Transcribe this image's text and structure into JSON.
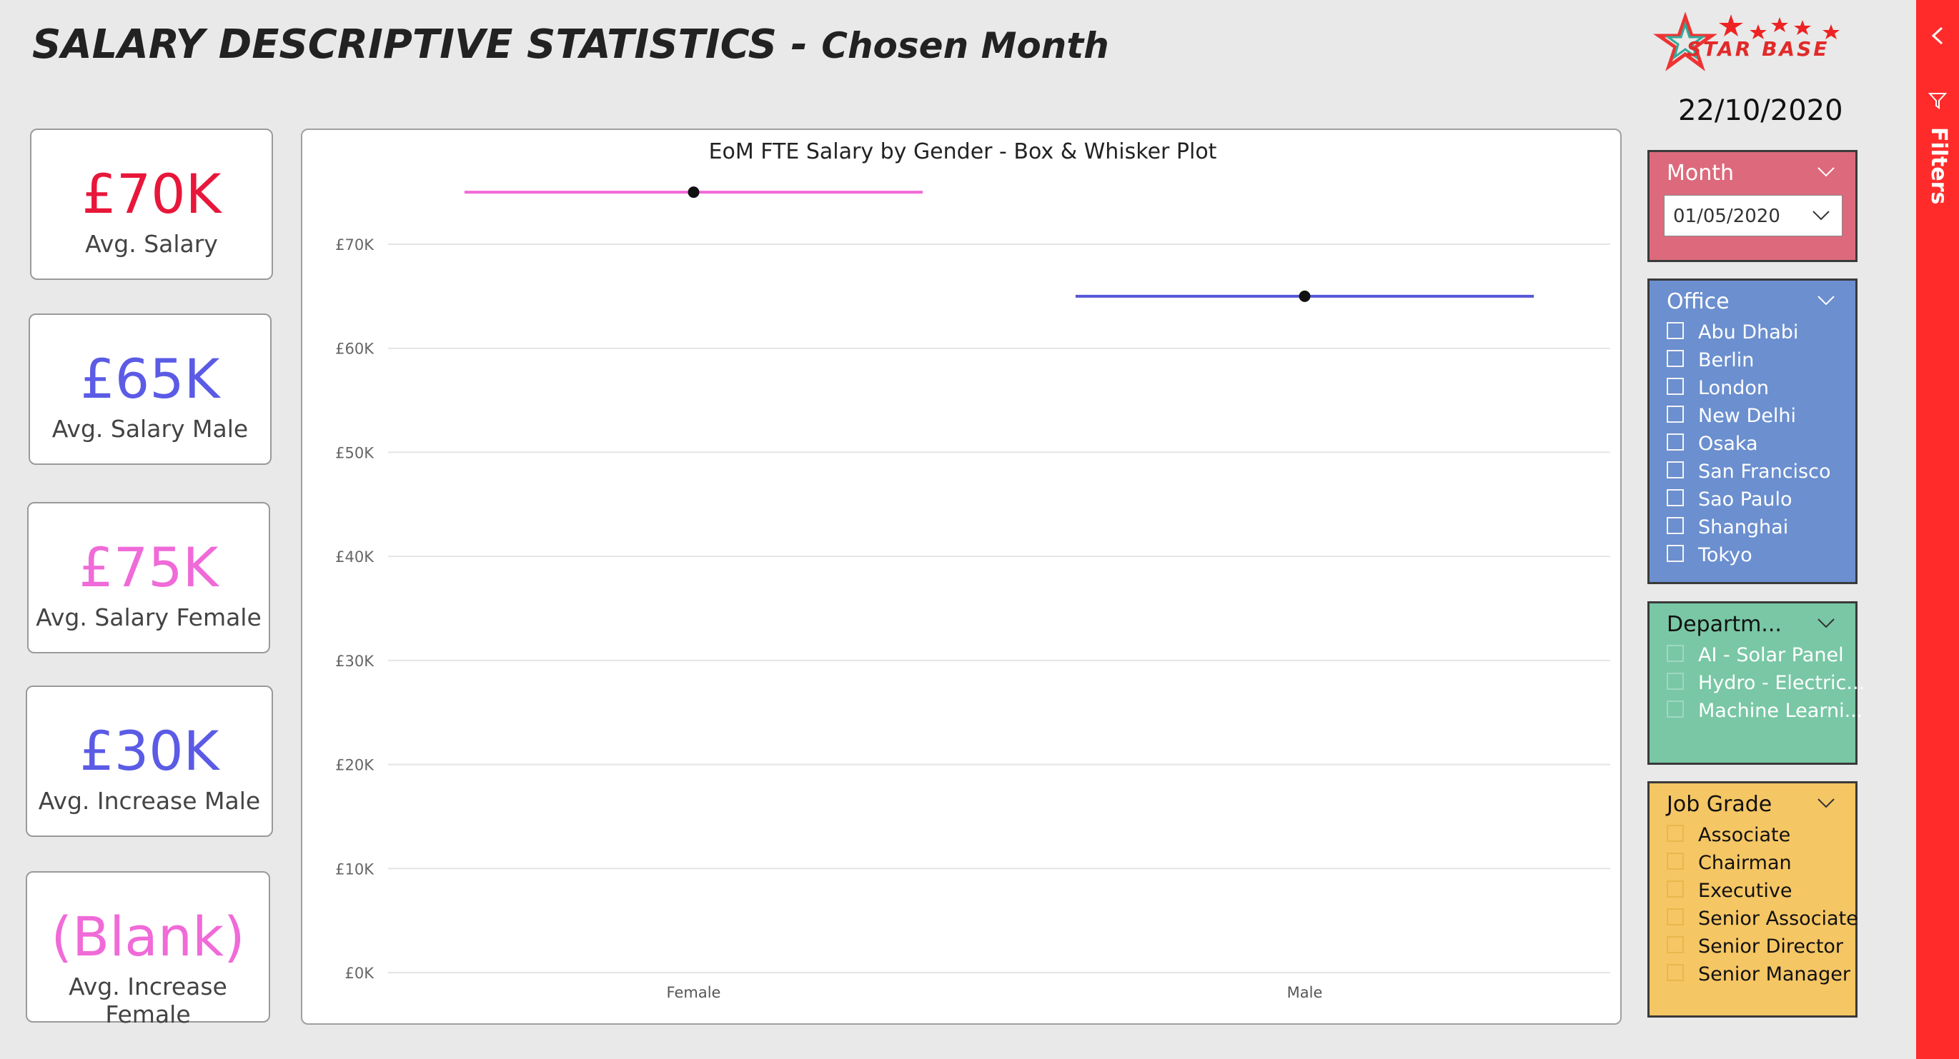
{
  "header": {
    "title_main": "SALARY DESCRIPTIVE STATISTICS - ",
    "title_sub": "Chosen Month",
    "logo_text": "STAR BASE",
    "date": "22/10/2020"
  },
  "kpis": [
    {
      "value": "£70K",
      "label": "Avg. Salary",
      "color": "#e8173a"
    },
    {
      "value": "£65K",
      "label": "Avg. Salary Male",
      "color": "#5b5be6"
    },
    {
      "value": "£75K",
      "label": "Avg. Salary Female",
      "color": "#f06ad8"
    },
    {
      "value": "£30K",
      "label": "Avg. Increase Male",
      "color": "#5b5be6"
    },
    {
      "value": "(Blank)",
      "label": "Avg. Increase Female",
      "color": "#f06ad8"
    }
  ],
  "chart_data": {
    "type": "box",
    "title": "EoM FTE Salary by Gender - Box & Whisker Plot",
    "categories": [
      "Female",
      "Male"
    ],
    "series": [
      {
        "category": "Female",
        "value": 75000,
        "color": "#f26ad8"
      },
      {
        "category": "Male",
        "value": 65000,
        "color": "#5656d8"
      }
    ],
    "ylim": [
      0,
      70000
    ],
    "yticks": [
      {
        "value": 0,
        "label": "£0K"
      },
      {
        "value": 10000,
        "label": "£10K"
      },
      {
        "value": 20000,
        "label": "£20K"
      },
      {
        "value": 30000,
        "label": "£30K"
      },
      {
        "value": 40000,
        "label": "£40K"
      },
      {
        "value": 50000,
        "label": "£50K"
      },
      {
        "value": 60000,
        "label": "£60K"
      },
      {
        "value": 70000,
        "label": "£70K"
      }
    ],
    "grid": true,
    "xlabel": "",
    "ylabel": ""
  },
  "slicers": {
    "month": {
      "header": "Month",
      "selected": "01/05/2020",
      "color": "#dc6a7c"
    },
    "office": {
      "header": "Office",
      "color": "#6b8fcf",
      "items": [
        "Abu Dhabi",
        "Berlin",
        "London",
        "New Delhi",
        "Osaka",
        "San Francisco",
        "Sao Paulo",
        "Shanghai",
        "Tokyo"
      ]
    },
    "department": {
      "header": "Departm...",
      "color": "#79c7a5",
      "items": [
        "AI - Solar Panel",
        "Hydro - Electric...",
        "Machine Learni..."
      ]
    },
    "job_grade": {
      "header": "Job Grade",
      "color": "#f5c664",
      "items": [
        "Associate",
        "Chairman",
        "Executive",
        "Senior Associate",
        "Senior Director",
        "Senior Manager"
      ]
    }
  },
  "filter_pane": {
    "label": "Filters",
    "accent": "#ff2b2b"
  }
}
